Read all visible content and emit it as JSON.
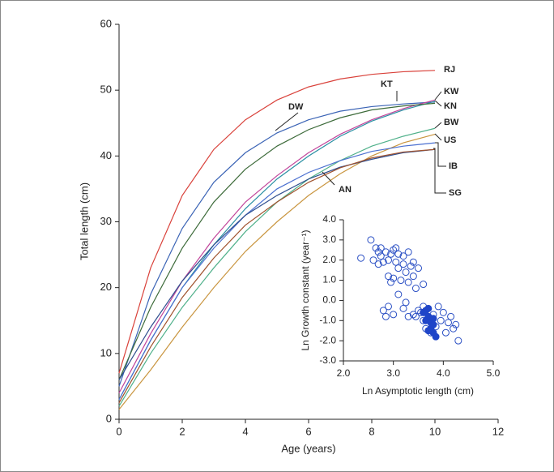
{
  "chart_data": [
    {
      "type": "line",
      "x_label": "Age (years)",
      "y_label": "Total length (cm)",
      "xlim": [
        0,
        12
      ],
      "xticks": [
        0,
        2,
        4,
        6,
        8,
        10,
        12
      ],
      "ylim": [
        0,
        60
      ],
      "yticks": [
        0,
        10,
        20,
        30,
        40,
        50,
        60
      ],
      "x": [
        0,
        1,
        2,
        3,
        4,
        5,
        6,
        7,
        8,
        9,
        10
      ],
      "series": [
        {
          "name": "RJ",
          "color": "#d9413a",
          "values": [
            7,
            23,
            34,
            41,
            45.5,
            48.5,
            50.5,
            51.7,
            52.4,
            52.8,
            53
          ]
        },
        {
          "name": "KT",
          "color": "#3a63b5",
          "values": [
            5,
            19,
            29,
            36,
            40.5,
            43.5,
            45.5,
            46.8,
            47.5,
            47.9,
            48.2
          ]
        },
        {
          "name": "KW",
          "color": "#c1449a",
          "values": [
            4,
            13,
            21,
            27.5,
            33,
            37,
            40.5,
            43.3,
            45.5,
            47.2,
            48.5
          ]
        },
        {
          "name": "KN",
          "color": "#2a8fa3",
          "values": [
            3,
            12,
            20,
            26.5,
            32,
            36.5,
            40,
            43,
            45.3,
            47,
            48.3
          ]
        },
        {
          "name": "DW",
          "color": "#3d6b3a",
          "values": [
            6,
            17,
            26,
            33,
            38,
            41.5,
            44,
            45.8,
            47,
            47.6,
            48
          ]
        },
        {
          "name": "BW",
          "color": "#4fb08a",
          "values": [
            2,
            10,
            17,
            23,
            28.5,
            33,
            36.5,
            39.3,
            41.5,
            43,
            44.2
          ]
        },
        {
          "name": "US",
          "color": "#c9953f",
          "values": [
            1.5,
            7.5,
            14,
            20,
            25.5,
            30,
            34,
            37.3,
            40,
            42,
            43.3
          ]
        },
        {
          "name": "IB",
          "color": "#4a6fd0",
          "values": [
            3,
            12,
            20,
            26,
            31,
            35,
            37.5,
            39.3,
            40.7,
            41.5,
            42
          ]
        },
        {
          "name": "AN",
          "color": "#2f4f8f",
          "values": [
            6,
            14,
            21,
            26.5,
            31,
            34,
            36.5,
            38.3,
            39.5,
            40.5,
            41
          ]
        },
        {
          "name": "SG",
          "color": "#a0522d",
          "values": [
            2.5,
            11,
            18.5,
            24.5,
            29.5,
            33,
            36,
            38.2,
            39.7,
            40.6,
            41
          ]
        }
      ]
    },
    {
      "type": "scatter",
      "x_label": "Ln Asymptotic length (cm)",
      "y_label": "Ln Growth constant (year⁻¹)",
      "xlim": [
        2,
        5
      ],
      "xticks": [
        {
          "value": 2,
          "label": "2.0"
        },
        {
          "value": 3,
          "label": "3.0"
        },
        {
          "value": 4,
          "label": "4.0"
        },
        {
          "value": 5,
          "label": "5.0"
        }
      ],
      "ylim": [
        -3,
        4
      ],
      "yticks": [
        {
          "value": 4,
          "label": "4.0"
        },
        {
          "value": 3,
          "label": "3.0"
        },
        {
          "value": 2,
          "label": "2.0"
        },
        {
          "value": 1,
          "label": "1.0"
        },
        {
          "value": 0,
          "label": "0.0"
        },
        {
          "value": -1,
          "label": "-1.0"
        },
        {
          "value": -2,
          "label": "-2.0"
        },
        {
          "value": -3,
          "label": "-3.0"
        }
      ],
      "series": [
        {
          "color": "#2a4fc4",
          "filled": false,
          "x": [
            2.35,
            2.55,
            2.6,
            2.65,
            2.7,
            2.75,
            2.75,
            2.8,
            2.85,
            2.9,
            2.9,
            2.95,
            3.0,
            3.05,
            3.1,
            3.1,
            3.15,
            3.2,
            3.25,
            3.3,
            3.3,
            3.35,
            3.4,
            3.45,
            3.5,
            3.6,
            2.8,
            2.9,
            3.0,
            2.85,
            3.1,
            3.2,
            3.25,
            3.3,
            3.5,
            3.55,
            3.6,
            3.6,
            3.65,
            3.7,
            3.75,
            3.8,
            3.85,
            3.9,
            3.95,
            4.0,
            4.05,
            4.1,
            4.15,
            4.2,
            4.25,
            4.3,
            3.4,
            3.45,
            2.95,
            3.05,
            2.7,
            3.2,
            3.0,
            3.4
          ],
          "values": [
            2.1,
            3.0,
            2.0,
            2.6,
            1.8,
            2.6,
            2.2,
            1.9,
            2.4,
            2.0,
            1.2,
            2.3,
            2.5,
            1.9,
            1.6,
            2.3,
            1.0,
            1.8,
            1.4,
            2.4,
            0.9,
            1.7,
            1.2,
            0.6,
            1.6,
            0.8,
            -0.5,
            -0.3,
            -0.7,
            -0.8,
            0.3,
            -0.4,
            -0.1,
            -0.8,
            -0.5,
            -0.6,
            -0.3,
            -1.0,
            -1.4,
            -0.8,
            -1.6,
            -0.7,
            -1.3,
            -0.3,
            -1.0,
            -0.6,
            -1.6,
            -1.1,
            -0.8,
            -1.4,
            -1.2,
            -2.0,
            -0.7,
            -0.8,
            0.9,
            2.6,
            2.4,
            2.2,
            1.1,
            1.9
          ]
        },
        {
          "color": "#1f45c8",
          "filled": true,
          "x": [
            3.6,
            3.65,
            3.7,
            3.7,
            3.75,
            3.75,
            3.8,
            3.8,
            3.85,
            3.7,
            3.65,
            3.8
          ],
          "values": [
            -0.6,
            -0.5,
            -0.4,
            -0.8,
            -1.1,
            -1.4,
            -1.2,
            -1.6,
            -1.8,
            -1.5,
            -1.0,
            -0.9
          ]
        }
      ]
    }
  ]
}
